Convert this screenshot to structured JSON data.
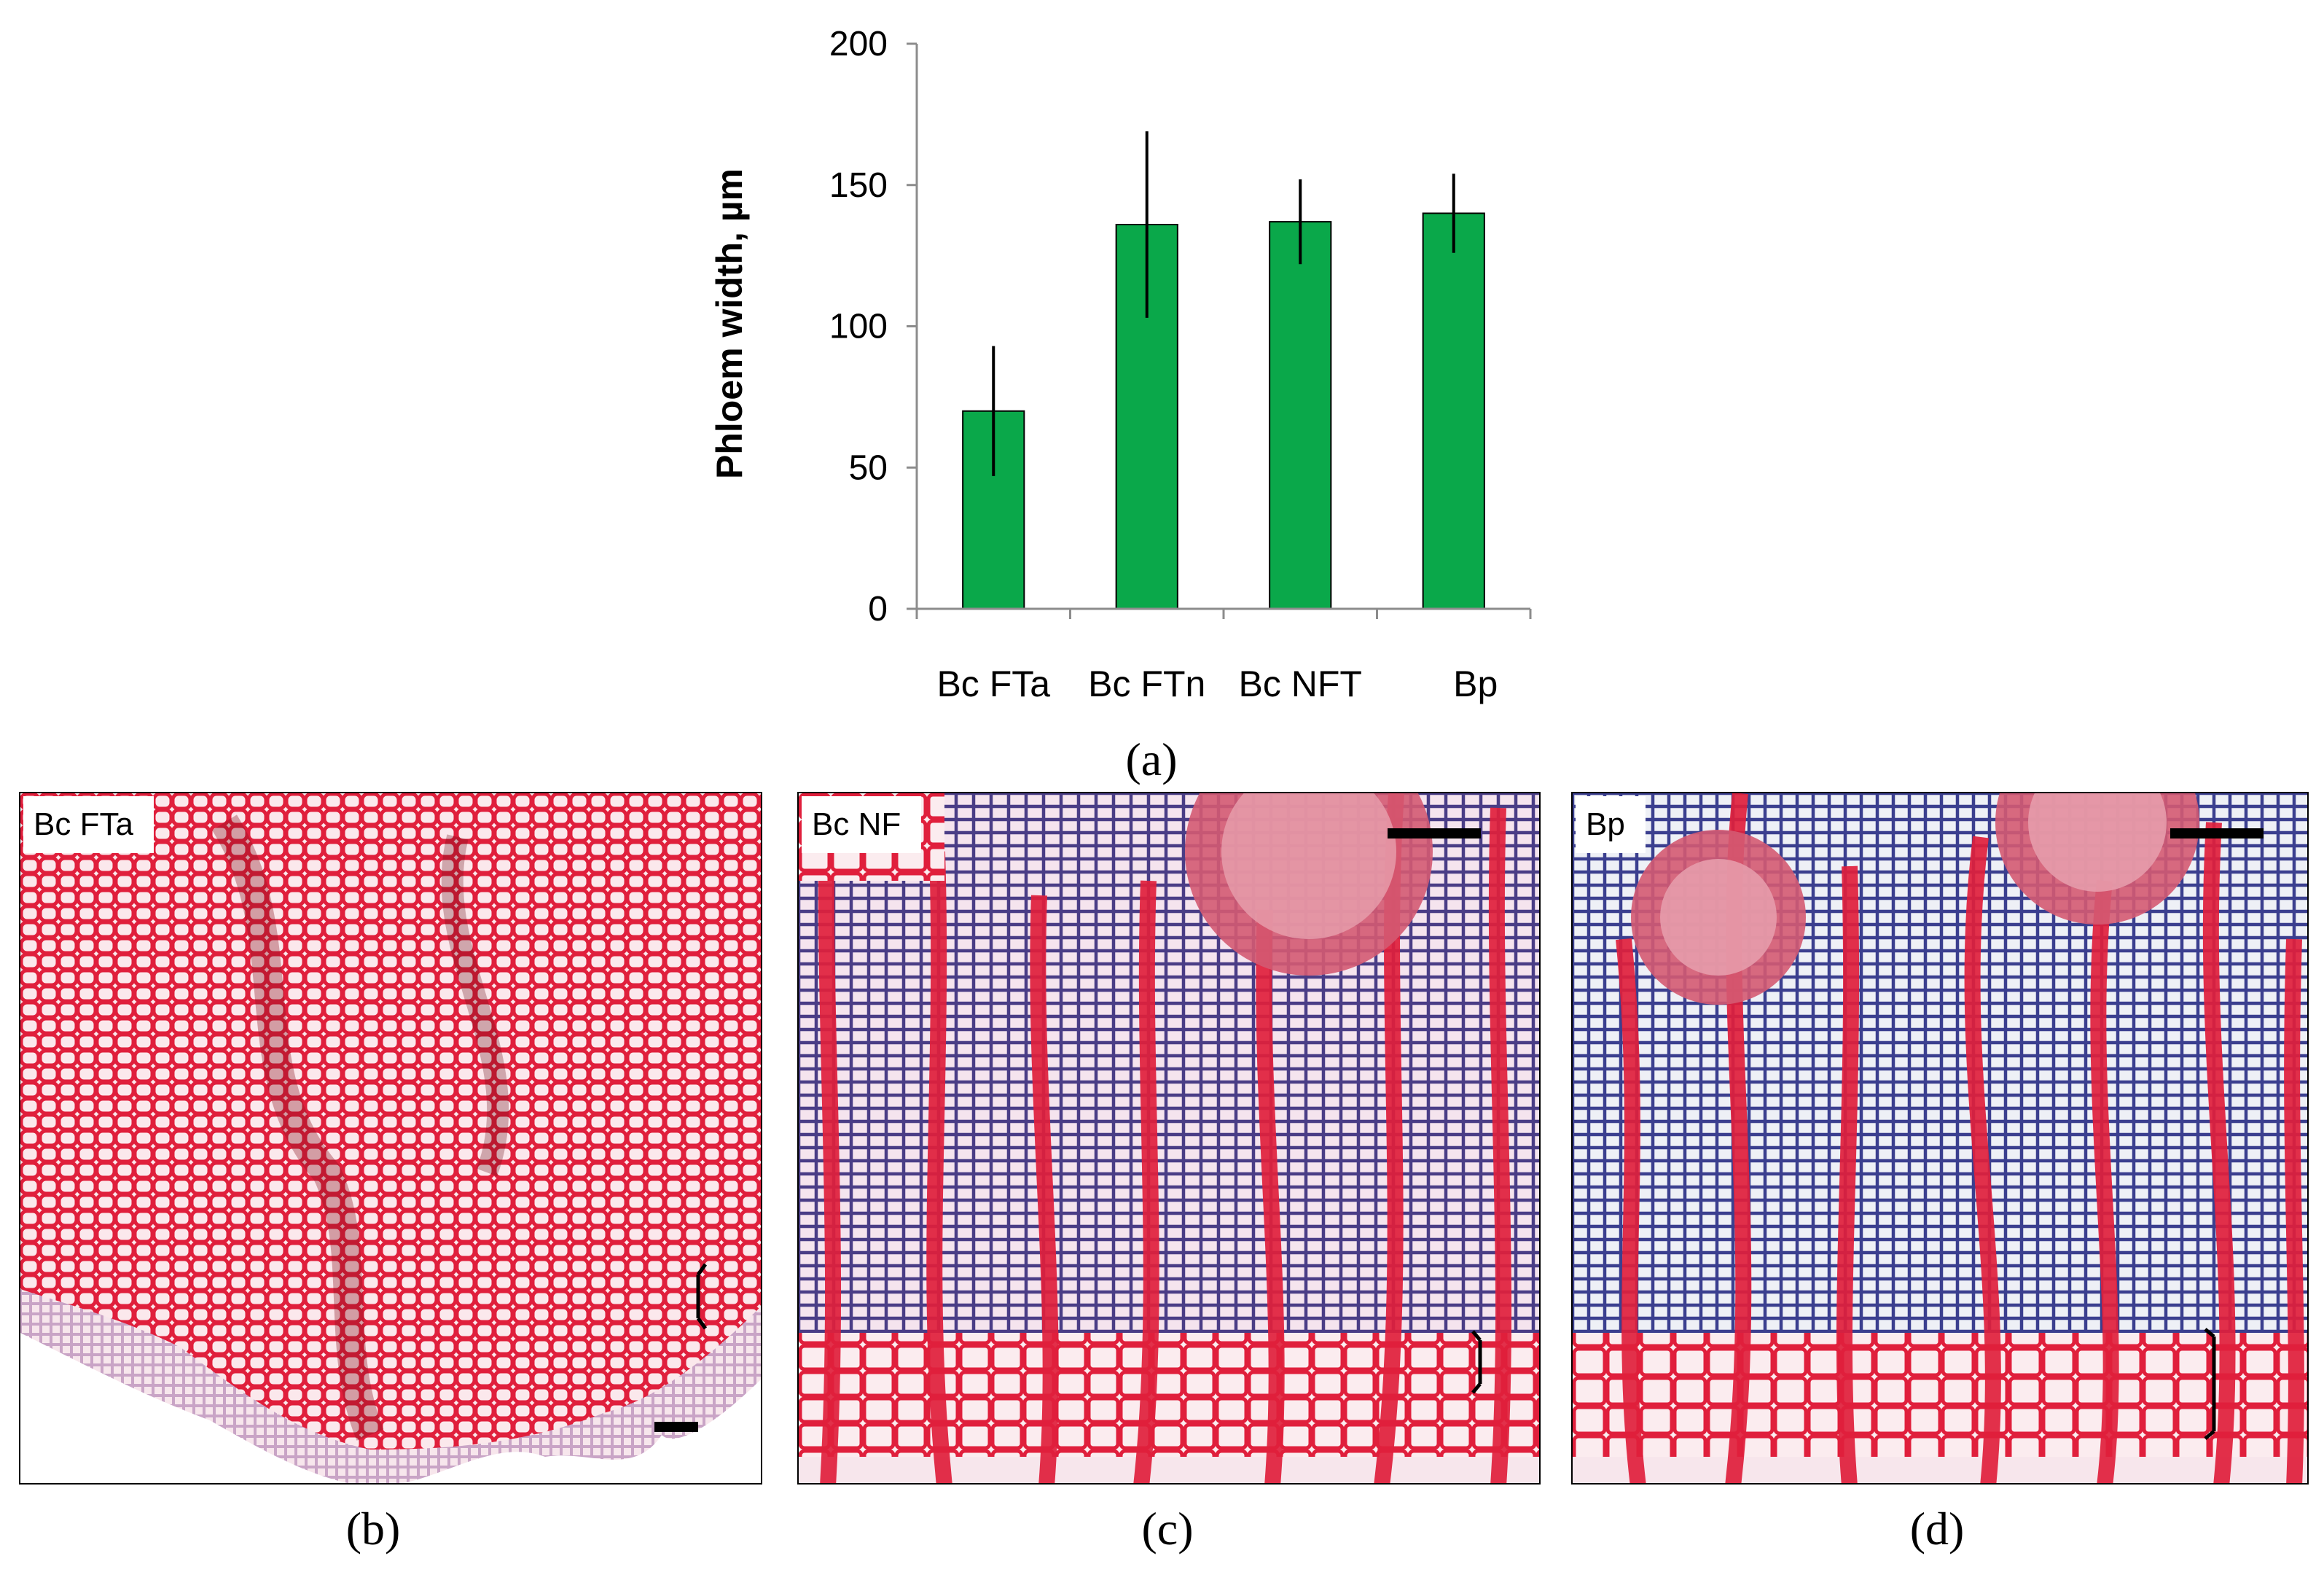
{
  "chart_data": {
    "type": "bar",
    "ylabel": "Phloem width, µm",
    "ylim": [
      0,
      200
    ],
    "yticks": [
      0,
      50,
      100,
      150,
      200
    ],
    "categories": [
      "Bc FTa",
      "Bc FTn",
      "Bc NFT",
      "Bp"
    ],
    "series": [
      {
        "values": [
          70,
          136,
          137,
          140
        ],
        "errors": [
          23,
          33,
          15,
          14
        ]
      }
    ],
    "bar_color": "#0aa84a",
    "grid": false
  },
  "captions": {
    "a": "(a)",
    "b": "(b)",
    "c": "(c)",
    "d": "(d)"
  },
  "panels": {
    "b": {
      "label": "Bc FTa"
    },
    "c": {
      "label": "Bc NF"
    },
    "d": {
      "label": "Bp"
    }
  },
  "colors": {
    "tissue_red": "#e01f3c",
    "tissue_pale": "#f3c6cf",
    "cell_lumen": "#fbe8ec",
    "ray_blue": "#3b3f8f"
  }
}
